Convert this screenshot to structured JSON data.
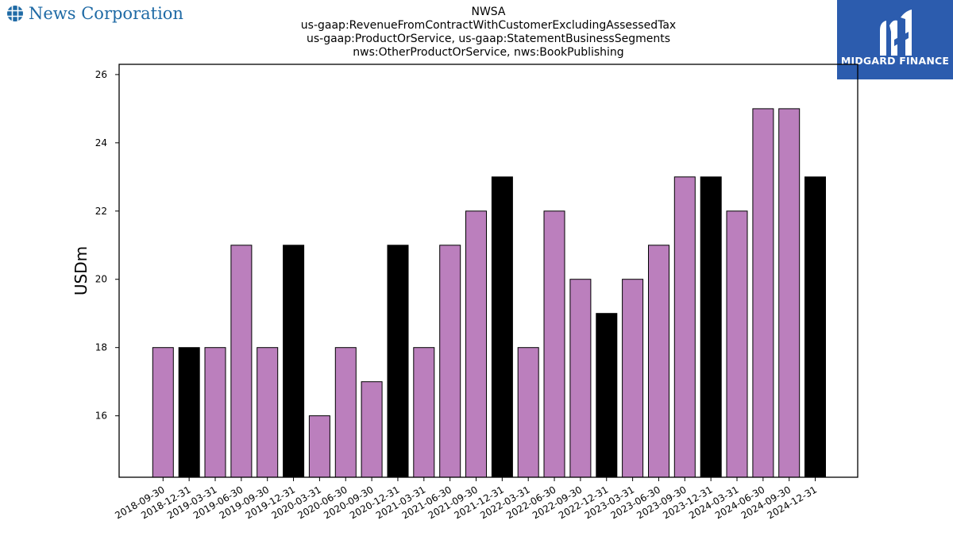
{
  "header": {
    "company_name": "News Corporation",
    "company_icon": "globe-grid-icon",
    "brand_name": "MIDGARD FINANCE",
    "brand_icon": "midgard-logo-icon",
    "brand_color": "#2c5cae"
  },
  "chart_data": {
    "type": "bar",
    "title_lines": [
      "NWSA",
      "us-gaap:RevenueFromContractWithCustomerExcludingAssessedTax",
      "us-gaap:ProductOrService, us-gaap:StatementBusinessSegments",
      "nws:OtherProductOrService, nws:BookPublishing"
    ],
    "xlabel": "",
    "ylabel": "USDm",
    "ylim": [
      14.2,
      26.3
    ],
    "yticks": [
      16,
      18,
      20,
      22,
      24,
      26
    ],
    "grid": false,
    "categories": [
      "2018-09-30",
      "2018-12-31",
      "2019-03-31",
      "2019-06-30",
      "2019-09-30",
      "2019-12-31",
      "2020-03-31",
      "2020-06-30",
      "2020-09-30",
      "2020-12-31",
      "2021-03-31",
      "2021-06-30",
      "2021-09-30",
      "2021-12-31",
      "2022-03-31",
      "2022-06-30",
      "2022-09-30",
      "2022-12-31",
      "2023-03-31",
      "2023-06-30",
      "2023-09-30",
      "2023-12-31",
      "2024-03-31",
      "2024-06-30",
      "2024-09-30",
      "2024-12-31"
    ],
    "values": [
      18,
      18,
      18,
      21,
      18,
      21,
      16,
      18,
      17,
      21,
      18,
      21,
      22,
      23,
      18,
      22,
      20,
      19,
      20,
      21,
      23,
      23,
      22,
      25,
      25,
      23
    ],
    "colors": {
      "quarter": "#bb7fbd",
      "year_end": "#000000"
    }
  }
}
